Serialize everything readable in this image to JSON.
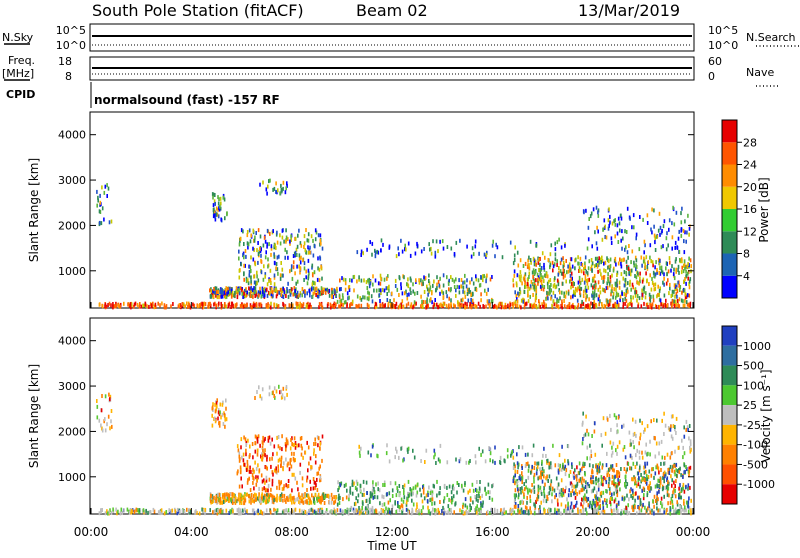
{
  "header": {
    "station": "South Pole Station (fitACF)",
    "beam": "Beam 02",
    "date": "13/Mar/2019"
  },
  "top_strips": {
    "nsky_label": "N.Sky",
    "nsky_ticks": [
      "10^5",
      "10^0"
    ],
    "nsearch_label": "N.Search",
    "nsearch_ticks": [
      "10^5",
      "10^0"
    ],
    "freq_label": "Freq.",
    "freq_unit": "[MHz]",
    "freq_ticks": [
      "18",
      "8"
    ],
    "nave_label": "Nave",
    "nave_ticks": [
      "60",
      "0"
    ],
    "cpid_label": "CPID",
    "cpid_text": "normalsound (fast) -157 RF"
  },
  "chart_data": [
    {
      "type": "heatmap",
      "name": "power",
      "ylabel": "Slant Range [km]",
      "ylim": [
        180,
        4500
      ],
      "yticks": [
        "1000",
        "2000",
        "3000",
        "4000"
      ],
      "colorbar_label": "Power [dB]",
      "colorbar_ticks": [
        "4",
        "8",
        "12",
        "16",
        "20",
        "24",
        "28"
      ],
      "colorbar_colors": [
        "#0000ff",
        "#1c64b4",
        "#2e8b57",
        "#32cd32",
        "#f0c800",
        "#ff8c00",
        "#ff5500",
        "#e60000"
      ]
    },
    {
      "type": "heatmap",
      "name": "velocity",
      "ylabel": "Slant Range [km]",
      "ylim": [
        180,
        4500
      ],
      "yticks": [
        "1000",
        "2000",
        "3000",
        "4000"
      ],
      "xlabel": "Time UT",
      "xticks": [
        "00:00",
        "04:00",
        "08:00",
        "12:00",
        "16:00",
        "20:00",
        "00:00"
      ],
      "colorbar_label": "Velocity [m s⁻¹]",
      "colorbar_ticks": [
        "1000",
        "500",
        "100",
        "25",
        "-25",
        "-100",
        "-500",
        "-1000"
      ],
      "colorbar_colors": [
        "#2040c0",
        "#2e6ea0",
        "#2e8b57",
        "#4cc830",
        "#bebebe",
        "#ffb400",
        "#ff8000",
        "#ff5000",
        "#e60000"
      ]
    }
  ],
  "colors": {
    "power_scale": [
      "#0000ff",
      "#1e50c8",
      "#2e8b57",
      "#5ab43c",
      "#c8c800",
      "#ffa000",
      "#ff6400",
      "#e60000"
    ],
    "velocity_scale": [
      "#2040c0",
      "#2e8b57",
      "#5ac832",
      "#bebebe",
      "#ffb400",
      "#ff8000",
      "#e60000"
    ]
  }
}
